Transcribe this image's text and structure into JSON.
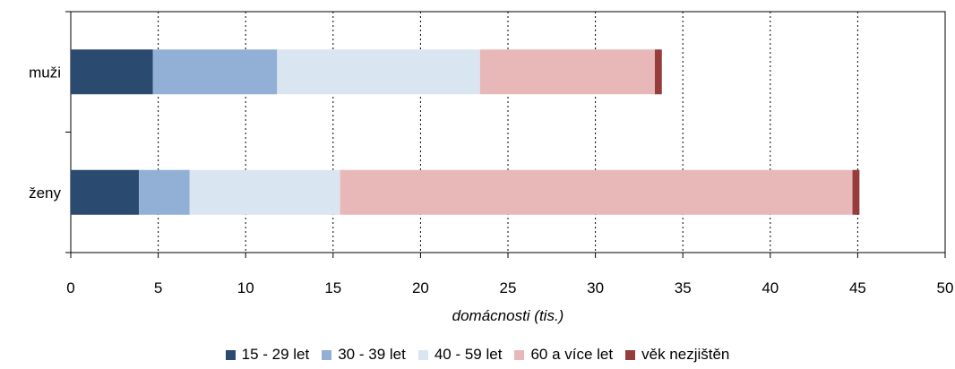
{
  "chart_data": {
    "type": "bar",
    "orientation": "horizontal",
    "stacked": true,
    "categories": [
      "muži",
      "ženy"
    ],
    "series": [
      {
        "name": "15 - 29 let",
        "color": "#2b4a70",
        "values": [
          4.7,
          3.9
        ]
      },
      {
        "name": "30 - 39 let",
        "color": "#92b0d6",
        "values": [
          7.1,
          2.9
        ]
      },
      {
        "name": "40 - 59 let",
        "color": "#dae5f2",
        "values": [
          11.6,
          8.6
        ]
      },
      {
        "name": "60 a více let",
        "color": "#e8b8b8",
        "values": [
          10.0,
          29.3
        ]
      },
      {
        "name": "věk nezjištěn",
        "color": "#963c3c",
        "values": [
          0.4,
          0.4
        ]
      }
    ],
    "xlabel": "domácnosti (tis.)",
    "ylabel": "",
    "xlim": [
      0,
      50
    ],
    "xticks": [
      0,
      5,
      10,
      15,
      20,
      25,
      30,
      35,
      40,
      45,
      50
    ],
    "grid": "vertical dotted",
    "legend_position": "bottom"
  }
}
